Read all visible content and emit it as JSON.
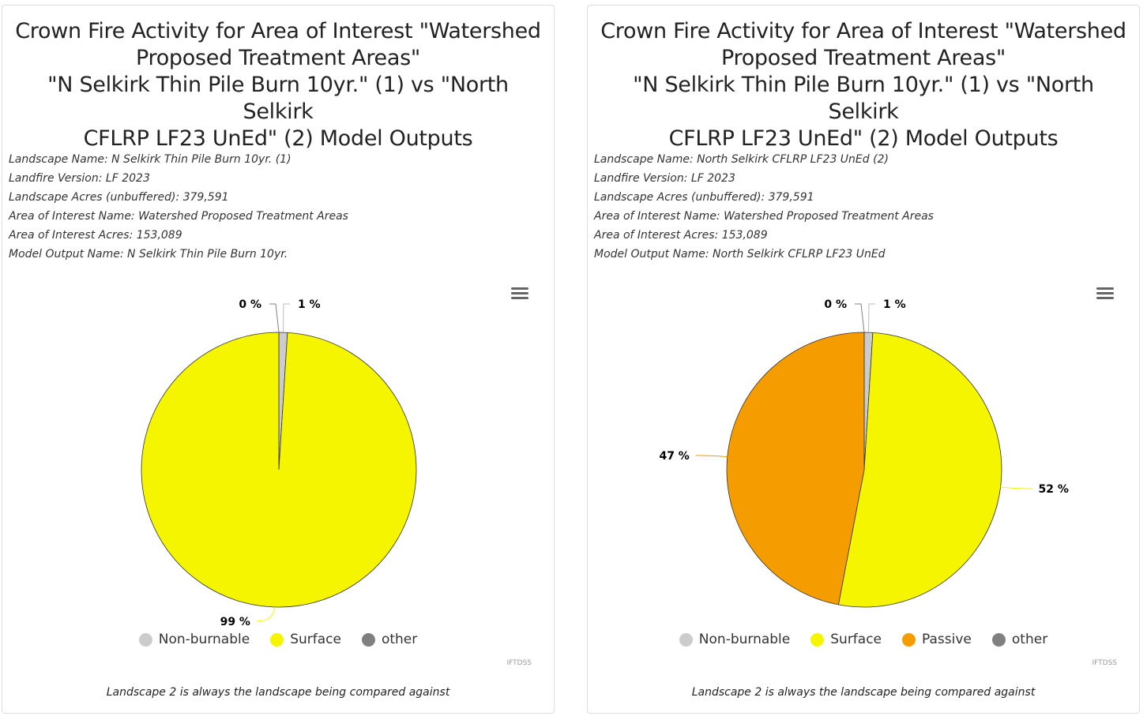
{
  "panels": [
    {
      "title_lines": [
        "Crown Fire Activity for Area of Interest \"Watershed",
        "Proposed Treatment Areas\"",
        "\"N Selkirk Thin Pile Burn 10yr.\" (1) vs \"North Selkirk",
        "CFLRP LF23 UnEd\" (2) Model Outputs"
      ],
      "meta": [
        "Landscape Name: N Selkirk Thin Pile Burn 10yr. (1)",
        "Landfire Version: LF 2023",
        "Landscape Acres (unbuffered): 379,591",
        "Area of Interest Name: Watershed Proposed Treatment Areas",
        "Area of Interest Acres: 153,089",
        "Model Output Name: N Selkirk Thin Pile Burn 10yr."
      ],
      "credit": "IFTDSS",
      "footnote": "Landscape 2 is always the landscape being compared against",
      "menu_icon": "hamburger-menu-icon"
    },
    {
      "title_lines": [
        "Crown Fire Activity for Area of Interest \"Watershed",
        "Proposed Treatment Areas\"",
        "\"N Selkirk Thin Pile Burn 10yr.\" (1) vs \"North Selkirk",
        "CFLRP LF23 UnEd\" (2) Model Outputs"
      ],
      "meta": [
        "Landscape Name: North Selkirk CFLRP LF23 UnEd (2)",
        "Landfire Version: LF 2023",
        "Landscape Acres (unbuffered): 379,591",
        "Area of Interest Name: Watershed Proposed Treatment Areas",
        "Area of Interest Acres: 153,089",
        "Model Output Name: North Selkirk CFLRP LF23 UnEd"
      ],
      "credit": "IFTDSS",
      "footnote": "Landscape 2 is always the landscape being compared against",
      "menu_icon": "hamburger-menu-icon"
    }
  ],
  "chart_data": [
    {
      "type": "pie",
      "slices": [
        {
          "name": "Non-burnable",
          "value": 1,
          "label": "1 %",
          "color": "#cccccc"
        },
        {
          "name": "Surface",
          "value": 99,
          "label": "99 %",
          "color": "#f5f500"
        },
        {
          "name": "other",
          "value": 0,
          "label": "0 %",
          "color": "#808080"
        }
      ],
      "legend": [
        {
          "name": "Non-burnable",
          "color": "#cccccc"
        },
        {
          "name": "Surface",
          "color": "#f5f500"
        },
        {
          "name": "other",
          "color": "#808080"
        }
      ],
      "legend_position": "bottom"
    },
    {
      "type": "pie",
      "slices": [
        {
          "name": "Non-burnable",
          "value": 1,
          "label": "1 %",
          "color": "#cccccc"
        },
        {
          "name": "Surface",
          "value": 52,
          "label": "52 %",
          "color": "#f5f500"
        },
        {
          "name": "Passive",
          "value": 47,
          "label": "47 %",
          "color": "#f59d00"
        },
        {
          "name": "other",
          "value": 0,
          "label": "0 %",
          "color": "#808080"
        }
      ],
      "legend": [
        {
          "name": "Non-burnable",
          "color": "#cccccc"
        },
        {
          "name": "Surface",
          "color": "#f5f500"
        },
        {
          "name": "Passive",
          "color": "#f59d00"
        },
        {
          "name": "other",
          "color": "#808080"
        }
      ],
      "legend_position": "bottom"
    }
  ]
}
